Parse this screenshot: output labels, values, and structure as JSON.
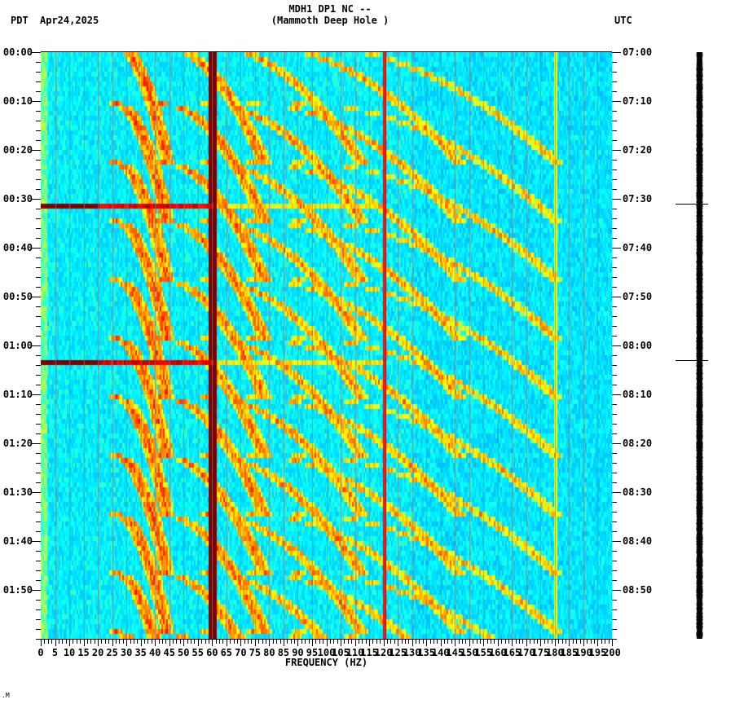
{
  "header": {
    "title_line1": "MDH1 DP1 NC --",
    "title_line2": "(Mammoth Deep Hole )",
    "left_timezone": "PDT",
    "date": "Apr24,2025",
    "right_timezone": "UTC"
  },
  "corner_mark": ".M",
  "chart_data": {
    "type": "heatmap",
    "title": "MDH1 DP1 NC -- (Mammoth Deep Hole )",
    "subtitle": "Apr24,2025",
    "xlabel": "FREQUENCY (HZ)",
    "ylabel_left": "PDT",
    "ylabel_right": "UTC",
    "xlim": [
      0,
      200
    ],
    "x_ticks": [
      0,
      5,
      10,
      15,
      20,
      25,
      30,
      35,
      40,
      45,
      50,
      55,
      60,
      65,
      70,
      75,
      80,
      85,
      90,
      95,
      100,
      105,
      110,
      115,
      120,
      125,
      130,
      135,
      140,
      145,
      150,
      155,
      160,
      165,
      170,
      175,
      180,
      185,
      190,
      195,
      200
    ],
    "y_ticks_left": [
      "00:00",
      "00:10",
      "00:20",
      "00:30",
      "00:40",
      "00:50",
      "01:00",
      "01:10",
      "01:20",
      "01:30",
      "01:40",
      "01:50"
    ],
    "y_ticks_right": [
      "07:00",
      "07:10",
      "07:20",
      "07:30",
      "07:40",
      "07:50",
      "08:00",
      "08:10",
      "08:20",
      "08:30",
      "08:40",
      "08:50"
    ],
    "time_span_minutes": 120,
    "colormap": [
      "#0000cc",
      "#0060ff",
      "#00c8ff",
      "#00ffff",
      "#80ff80",
      "#ffff00",
      "#ff8000",
      "#ff0000",
      "#800000"
    ],
    "persistent_lines_hz": [
      {
        "freq": 60,
        "strength": "very strong",
        "color": "#8b0000"
      },
      {
        "freq": 120,
        "strength": "moderate",
        "color": "#8b0000"
      },
      {
        "freq": 180,
        "strength": "weak",
        "color": "#ff8000"
      }
    ],
    "broadband_events": [
      {
        "time_pdt": "00:31",
        "freq_range_hz": [
          0,
          60
        ]
      },
      {
        "time_pdt": "01:03",
        "freq_range_hz": [
          0,
          60
        ]
      }
    ],
    "sweep_features": "Repeating upward-curving frequency sweep harmonics approx. every 10-12 minutes, spanning ~20-130 Hz",
    "event_marks_trace_pdt": [
      "00:31",
      "01:03"
    ]
  }
}
